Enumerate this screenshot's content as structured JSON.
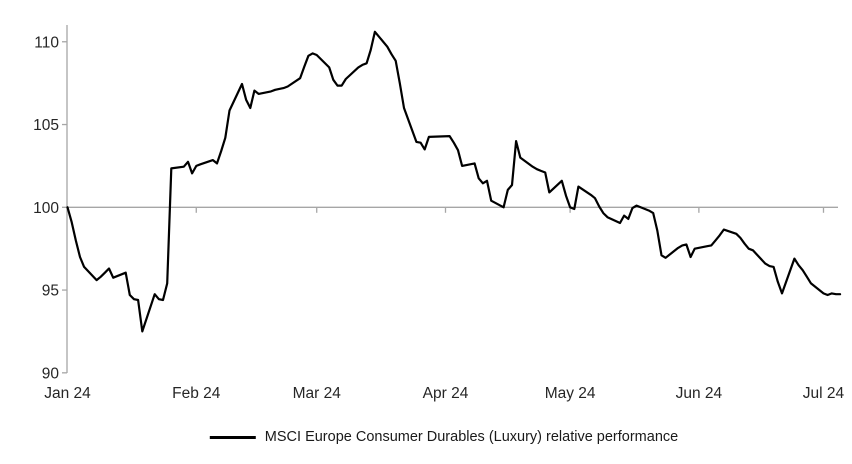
{
  "chart_data": {
    "type": "line",
    "title": "",
    "xlabel": "",
    "ylabel": "",
    "ylim": [
      90,
      111.6
    ],
    "grid": "single horizontal reference line at 100 (axis crosses at 100, labels low)",
    "legend_position": "bottom-center",
    "colors": {
      "axis": "#a6a6a6",
      "text": "#262626",
      "series": "#000000",
      "background": "#ffffff"
    },
    "y_axis": {
      "ticks": [
        110,
        105,
        100,
        95,
        90
      ]
    },
    "x_axis": {
      "unit": "days since 1 Jan 2024 (weekday closes)",
      "tick_labels": [
        "Jan 24",
        "Feb 24",
        "Mar 24",
        "Apr 24",
        "May 24",
        "Jun 24",
        "Jul 24"
      ],
      "tick_day_offsets": [
        0,
        31,
        60,
        91,
        121,
        152,
        182
      ]
    },
    "baseline_value": 100,
    "series": [
      {
        "name": "MSCI Europe Consumer Durables (Luxury) relative performance",
        "color": "#000000",
        "points_day_value": [
          [
            0,
            100.0
          ],
          [
            1,
            99.1
          ],
          [
            2,
            98.0
          ],
          [
            3,
            97.0
          ],
          [
            4,
            96.4
          ],
          [
            7,
            95.6
          ],
          [
            8,
            95.8
          ],
          [
            9,
            96.05
          ],
          [
            10,
            96.3
          ],
          [
            11,
            95.75
          ],
          [
            14,
            96.05
          ],
          [
            15,
            94.7
          ],
          [
            16,
            94.45
          ],
          [
            17,
            94.4
          ],
          [
            18,
            92.5
          ],
          [
            21,
            94.75
          ],
          [
            22,
            94.45
          ],
          [
            23,
            94.4
          ],
          [
            24,
            95.4
          ],
          [
            25,
            102.35
          ],
          [
            28,
            102.45
          ],
          [
            29,
            102.75
          ],
          [
            30,
            102.05
          ],
          [
            31,
            102.5
          ],
          [
            32,
            102.6
          ],
          [
            35,
            102.85
          ],
          [
            36,
            102.65
          ],
          [
            37,
            103.4
          ],
          [
            38,
            104.2
          ],
          [
            39,
            105.85
          ],
          [
            42,
            107.45
          ],
          [
            43,
            106.5
          ],
          [
            44,
            106.0
          ],
          [
            45,
            107.05
          ],
          [
            46,
            106.85
          ],
          [
            49,
            107.0
          ],
          [
            50,
            107.1
          ],
          [
            51,
            107.15
          ],
          [
            52,
            107.2
          ],
          [
            53,
            107.3
          ],
          [
            56,
            107.8
          ],
          [
            57,
            108.5
          ],
          [
            58,
            109.15
          ],
          [
            59,
            109.3
          ],
          [
            60,
            109.2
          ],
          [
            63,
            108.45
          ],
          [
            64,
            107.7
          ],
          [
            65,
            107.35
          ],
          [
            66,
            107.35
          ],
          [
            67,
            107.75
          ],
          [
            70,
            108.45
          ],
          [
            71,
            108.6
          ],
          [
            72,
            108.7
          ],
          [
            73,
            109.5
          ],
          [
            74,
            110.6
          ],
          [
            77,
            109.7
          ],
          [
            78,
            109.25
          ],
          [
            79,
            108.85
          ],
          [
            80,
            107.5
          ],
          [
            81,
            106.0
          ],
          [
            84,
            103.95
          ],
          [
            85,
            103.9
          ],
          [
            86,
            103.5
          ],
          [
            87,
            104.25
          ],
          [
            92,
            104.3
          ],
          [
            93,
            103.9
          ],
          [
            94,
            103.45
          ],
          [
            95,
            102.5
          ],
          [
            98,
            102.65
          ],
          [
            99,
            101.75
          ],
          [
            100,
            101.45
          ],
          [
            101,
            101.6
          ],
          [
            102,
            100.4
          ],
          [
            105,
            100.0
          ],
          [
            106,
            101.05
          ],
          [
            107,
            101.35
          ],
          [
            108,
            104.0
          ],
          [
            109,
            103.0
          ],
          [
            112,
            102.45
          ],
          [
            113,
            102.3
          ],
          [
            114,
            102.2
          ],
          [
            115,
            102.1
          ],
          [
            116,
            100.9
          ],
          [
            119,
            101.6
          ],
          [
            120,
            100.7
          ],
          [
            121,
            100.0
          ],
          [
            122,
            99.9
          ],
          [
            123,
            101.25
          ],
          [
            126,
            100.75
          ],
          [
            127,
            100.55
          ],
          [
            128,
            100.05
          ],
          [
            129,
            99.65
          ],
          [
            130,
            99.4
          ],
          [
            133,
            99.05
          ],
          [
            134,
            99.5
          ],
          [
            135,
            99.3
          ],
          [
            136,
            99.95
          ],
          [
            137,
            100.1
          ],
          [
            140,
            99.8
          ],
          [
            141,
            99.65
          ],
          [
            142,
            98.6
          ],
          [
            143,
            97.1
          ],
          [
            144,
            96.95
          ],
          [
            147,
            97.55
          ],
          [
            148,
            97.7
          ],
          [
            149,
            97.75
          ],
          [
            150,
            97.0
          ],
          [
            151,
            97.5
          ],
          [
            154,
            97.65
          ],
          [
            155,
            97.7
          ],
          [
            156,
            98.0
          ],
          [
            157,
            98.3
          ],
          [
            158,
            98.65
          ],
          [
            161,
            98.4
          ],
          [
            162,
            98.15
          ],
          [
            163,
            97.8
          ],
          [
            164,
            97.5
          ],
          [
            165,
            97.4
          ],
          [
            168,
            96.6
          ],
          [
            169,
            96.45
          ],
          [
            170,
            96.4
          ],
          [
            171,
            95.5
          ],
          [
            172,
            94.8
          ],
          [
            175,
            96.9
          ],
          [
            176,
            96.5
          ],
          [
            177,
            96.2
          ],
          [
            178,
            95.8
          ],
          [
            179,
            95.4
          ],
          [
            182,
            94.8
          ],
          [
            183,
            94.7
          ],
          [
            184,
            94.8
          ],
          [
            185,
            94.75
          ],
          [
            186,
            94.75
          ]
        ]
      }
    ]
  },
  "legend": {
    "label": "MSCI Europe Consumer Durables (Luxury) relative performance"
  }
}
